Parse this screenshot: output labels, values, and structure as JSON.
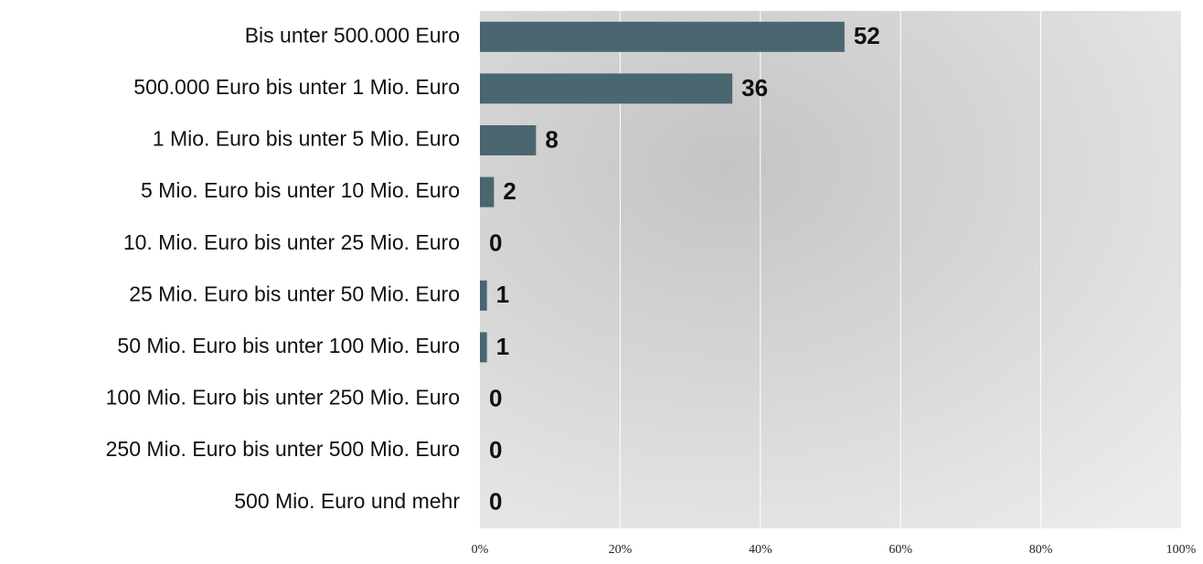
{
  "chart_data": {
    "type": "bar",
    "orientation": "horizontal",
    "categories": [
      "Bis unter 500.000 Euro",
      "500.000 Euro bis unter 1 Mio. Euro",
      "1 Mio. Euro bis unter 5 Mio. Euro",
      "5 Mio. Euro bis unter 10 Mio. Euro",
      "10. Mio. Euro bis unter 25 Mio. Euro",
      "25 Mio. Euro bis unter 50 Mio. Euro",
      "50 Mio. Euro bis unter 100 Mio. Euro",
      "100 Mio. Euro bis unter 250 Mio. Euro",
      "250 Mio. Euro bis unter 500 Mio. Euro",
      "500 Mio. Euro und mehr"
    ],
    "values": [
      52,
      36,
      8,
      2,
      0,
      1,
      1,
      0,
      0,
      0
    ],
    "color": "#4a6670",
    "xlim": [
      0,
      100
    ],
    "xticks": [
      {
        "value": 0,
        "label": "0%"
      },
      {
        "value": 20,
        "label": "20%"
      },
      {
        "value": 40,
        "label": "40%"
      },
      {
        "value": 60,
        "label": "60%"
      },
      {
        "value": 80,
        "label": "80%"
      },
      {
        "value": 100,
        "label": "100%"
      }
    ],
    "grid": true
  }
}
